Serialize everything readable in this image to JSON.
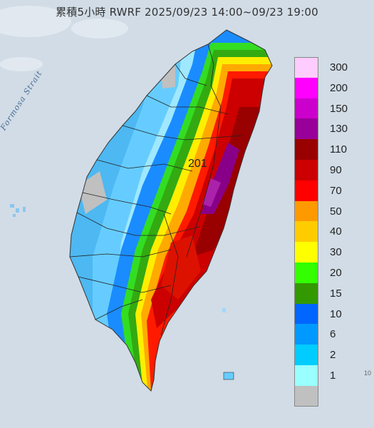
{
  "title": "累積5小時 RWRF 2025/09/23 14:00~09/23 19:00",
  "sea_label": "Formosa Strait",
  "max_value_label": "201",
  "corner_label": "10",
  "legend": [
    {
      "label": "300",
      "color": "#ffccff"
    },
    {
      "label": "200",
      "color": "#ff00ff"
    },
    {
      "label": "150",
      "color": "#cc00cc"
    },
    {
      "label": "130",
      "color": "#990099"
    },
    {
      "label": "110",
      "color": "#990000"
    },
    {
      "label": "90",
      "color": "#cc0000"
    },
    {
      "label": "70",
      "color": "#ff0000"
    },
    {
      "label": "50",
      "color": "#ff9900"
    },
    {
      "label": "40",
      "color": "#ffcc00"
    },
    {
      "label": "30",
      "color": "#ffff00"
    },
    {
      "label": "20",
      "color": "#33ff00"
    },
    {
      "label": "15",
      "color": "#339900"
    },
    {
      "label": "10",
      "color": "#0066ff"
    },
    {
      "label": "6",
      "color": "#0099ff"
    },
    {
      "label": "2",
      "color": "#00ccff"
    },
    {
      "label": "1",
      "color": "#99ffff"
    },
    {
      "label": "",
      "color": "#c0c0c0"
    }
  ]
}
